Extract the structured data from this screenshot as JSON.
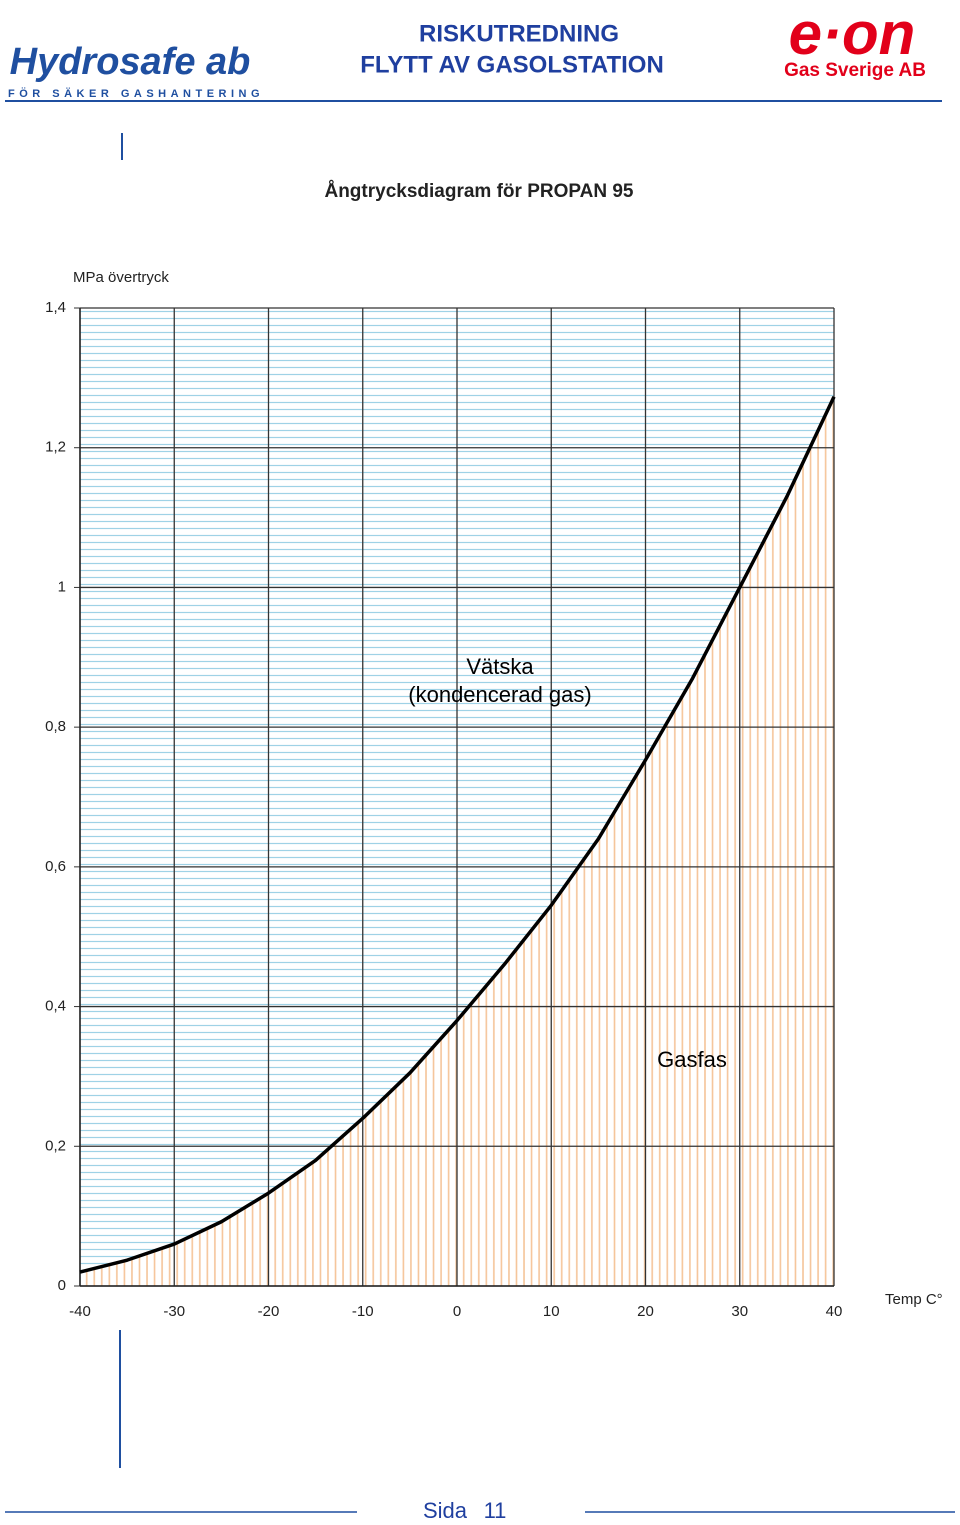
{
  "header": {
    "logo_left": "Hydrosafe ab",
    "logo_left_tagline": "FÖR SÄKER GASHANTERING",
    "title_line1": "RISKUTREDNING",
    "title_line2": "FLYTT AV GASOLSTATION",
    "logo_right": "e·on",
    "company": "Gas Sverige AB"
  },
  "chart_data": {
    "type": "line",
    "title": "Ångtrycksdiagram för PROPAN 95",
    "y_label": "MPa övertryck",
    "x_label": "Temp C°",
    "x": [
      -40,
      -35,
      -30,
      -25,
      -20,
      -15,
      -10,
      -5,
      0,
      5,
      10,
      15,
      20,
      25,
      30,
      35,
      40
    ],
    "values": [
      0.02,
      0.037,
      0.06,
      0.092,
      0.133,
      0.18,
      0.24,
      0.305,
      0.38,
      0.46,
      0.545,
      0.64,
      0.753,
      0.87,
      1.0,
      1.13,
      1.273
    ],
    "color": "#000000",
    "xlim": [
      -40,
      40
    ],
    "xticks": [
      -40,
      -30,
      -20,
      -10,
      0,
      10,
      20,
      30,
      40
    ],
    "ylim": [
      0,
      1.4
    ],
    "yticks": [
      0,
      {
        "value": 0.2,
        "label": "0,2"
      },
      {
        "value": 0.4,
        "label": "0,4"
      },
      {
        "value": 0.6,
        "label": "0,6"
      },
      {
        "value": 0.8,
        "label": "0,8"
      },
      1,
      {
        "value": 1.2,
        "label": "1,2"
      },
      {
        "value": 1.4,
        "label": "1,4"
      }
    ],
    "grid": true,
    "annotations": [
      "Vätska",
      "(kondencerad gas)",
      "Gasfas"
    ]
  },
  "footer": {
    "page_label": "Sida",
    "page_number": "11"
  }
}
